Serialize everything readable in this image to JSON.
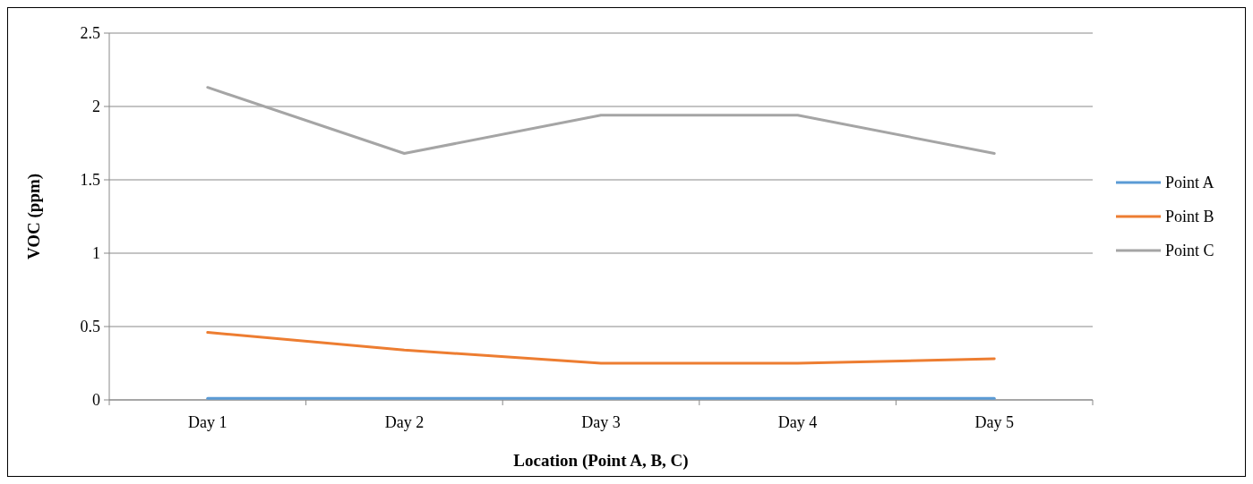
{
  "chart_data": {
    "type": "line",
    "xlabel": "Location (Point A, B, C)",
    "ylabel": "VOC (ppm)",
    "categories": [
      "Day 1",
      "Day 2",
      "Day 3",
      "Day 4",
      "Day 5"
    ],
    "series": [
      {
        "name": "Point A",
        "color": "#5b9bd5",
        "values": [
          0.01,
          0.01,
          0.01,
          0.01,
          0.01
        ]
      },
      {
        "name": "Point B",
        "color": "#ed7d31",
        "values": [
          0.46,
          0.34,
          0.25,
          0.25,
          0.28
        ]
      },
      {
        "name": "Point C",
        "color": "#a5a5a5",
        "values": [
          2.13,
          1.68,
          1.94,
          1.94,
          1.68
        ]
      }
    ],
    "ylim": [
      0,
      2.5
    ],
    "yticks": [
      0,
      0.5,
      1,
      1.5,
      2,
      2.5
    ],
    "grid": "y",
    "legend": "right",
    "marker": "none",
    "line_style": "solid"
  }
}
